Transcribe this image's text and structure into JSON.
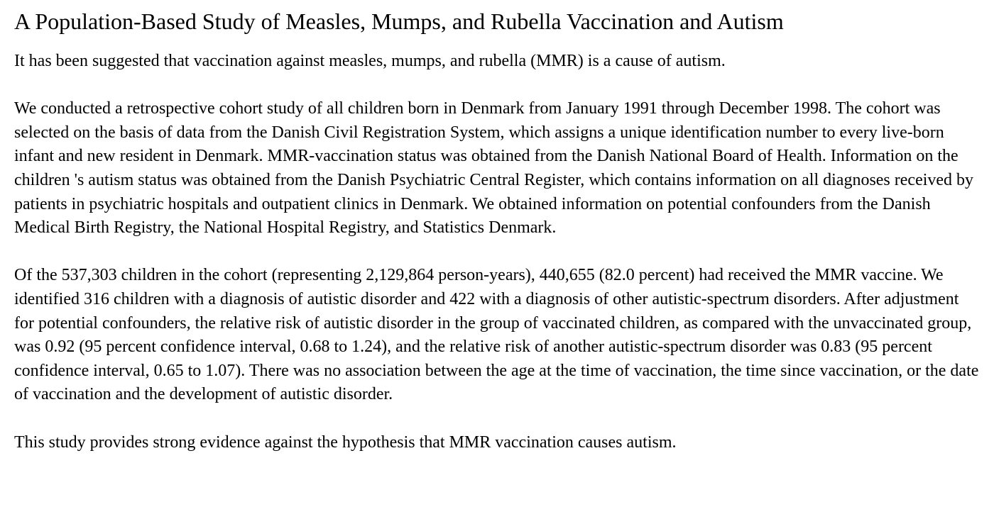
{
  "article": {
    "title": "A Population-Based Study of Measles, Mumps, and Rubella Vaccination and Autism",
    "background": "It has been suggested that vaccination against measles, mumps, and rubella (MMR) is a cause of autism.",
    "methods": "We conducted a retrospective cohort study of all children born in Denmark from January 1991 through December 1998. The cohort was selected on the basis of data from the Danish Civil Registration System, which assigns a unique identification number to every live-born infant and new resident in Denmark. MMR-vaccination status was obtained from the Danish National Board of Health. Information on the children 's autism status was obtained from the Danish Psychiatric Central Register, which contains information on all diagnoses received by patients in psychiatric hospitals and outpatient clinics in Denmark. We obtained information on potential confounders from the Danish Medical Birth Registry, the National Hospital Registry, and Statistics Denmark.",
    "results": "Of the 537,303 children in the cohort (representing 2,129,864 person-years), 440,655 (82.0 percent) had received the MMR vaccine. We identified 316 children with a diagnosis of autistic disorder and 422 with a diagnosis of other autistic-spectrum disorders. After adjustment for potential confounders, the relative risk of autistic disorder in the group of vaccinated children, as compared with the unvaccinated group, was 0.92 (95 percent confidence interval, 0.68 to 1.24), and the relative risk of another autistic-spectrum disorder was 0.83 (95 percent confidence interval, 0.65 to 1.07). There was no association between the age at the time of vaccination, the time since vaccination, or the date of vaccination and the development of autistic disorder.",
    "conclusions": "This study provides strong evidence against the hypothesis that MMR vaccination causes autism."
  }
}
